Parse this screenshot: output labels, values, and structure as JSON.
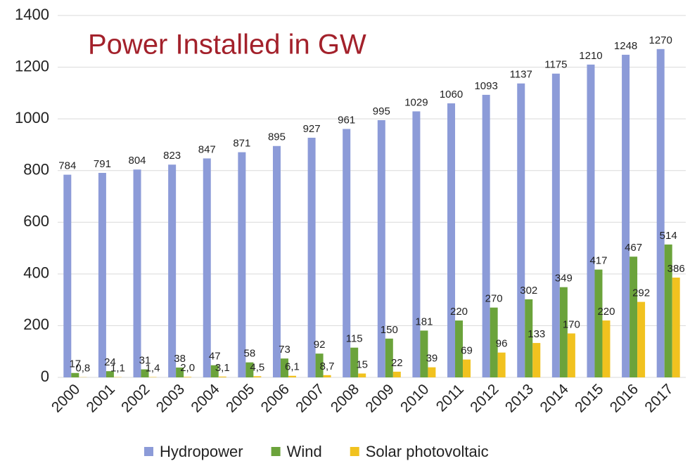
{
  "chart_data": {
    "type": "bar",
    "title": "Power Installed in GW",
    "categories": [
      "2000",
      "2001",
      "2002",
      "2003",
      "2004",
      "2005",
      "2006",
      "2007",
      "2008",
      "2009",
      "2010",
      "2011",
      "2012",
      "2013",
      "2014",
      "2015",
      "2016",
      "2017"
    ],
    "series": [
      {
        "name": "Hydropower",
        "color": "#8c9bd8",
        "values": [
          784,
          791,
          804,
          823,
          847,
          871,
          895,
          927,
          961,
          995,
          1029,
          1060,
          1093,
          1137,
          1175,
          1210,
          1248,
          1270
        ]
      },
      {
        "name": "Wind",
        "color": "#6ba33b",
        "values": [
          17,
          24,
          31,
          38,
          47,
          58,
          73,
          92,
          115,
          150,
          181,
          220,
          270,
          302,
          349,
          417,
          467,
          514
        ]
      },
      {
        "name": "Solar photovoltaic",
        "color": "#f1c21f",
        "values": [
          0.8,
          1.1,
          1.4,
          2.0,
          3.1,
          4.5,
          6.1,
          8.7,
          15,
          22,
          39,
          69,
          96,
          133,
          170,
          220,
          292,
          386
        ],
        "value_labels": [
          "0,8",
          "1,1",
          "1,4",
          "2,0",
          "3,1",
          "4,5",
          "6,1",
          "8,7",
          "15",
          "22",
          "39",
          "69",
          "96",
          "133",
          "170",
          "220",
          "292",
          "386"
        ]
      }
    ],
    "ylim": [
      0,
      1400
    ],
    "yticks": [
      0,
      200,
      400,
      600,
      800,
      1000,
      1200,
      1400
    ],
    "grid": true,
    "legend": "bottom"
  }
}
